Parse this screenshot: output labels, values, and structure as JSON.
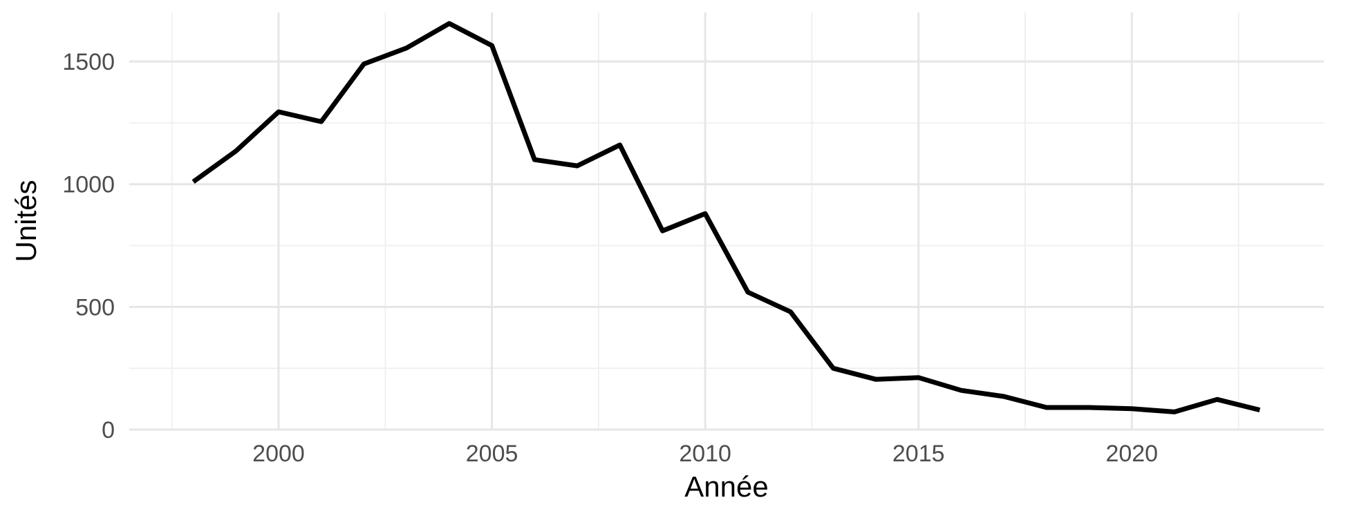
{
  "chart_data": {
    "type": "line",
    "xlabel": "Année",
    "ylabel": "Unités",
    "xlim": [
      1996.5,
      2024.5
    ],
    "ylim": [
      0,
      1700
    ],
    "x_ticks": [
      2000,
      2005,
      2010,
      2015,
      2020
    ],
    "x_minor_ticks": [
      1997.5,
      2002.5,
      2007.5,
      2012.5,
      2017.5,
      2022.5
    ],
    "y_ticks": [
      0,
      500,
      1000,
      1500
    ],
    "y_minor_ticks": [
      250,
      750,
      1250
    ],
    "grid": true,
    "colors": {
      "line": "#000000",
      "grid": "#e6e6e6",
      "tick_text": "#4d4d4d"
    },
    "series": [
      {
        "x": [
          1998,
          1999,
          2000,
          2001,
          2002,
          2003,
          2004,
          2005,
          2006,
          2007,
          2008,
          2009,
          2010,
          2011,
          2012,
          2013,
          2014,
          2015,
          2016,
          2017,
          2018,
          2019,
          2020,
          2021,
          2022,
          2023
        ],
        "values": [
          1010,
          1135,
          1295,
          1255,
          1490,
          1555,
          1655,
          1565,
          1100,
          1075,
          1160,
          810,
          880,
          560,
          480,
          250,
          205,
          212,
          160,
          135,
          90,
          90,
          85,
          72,
          123,
          80
        ]
      }
    ]
  }
}
